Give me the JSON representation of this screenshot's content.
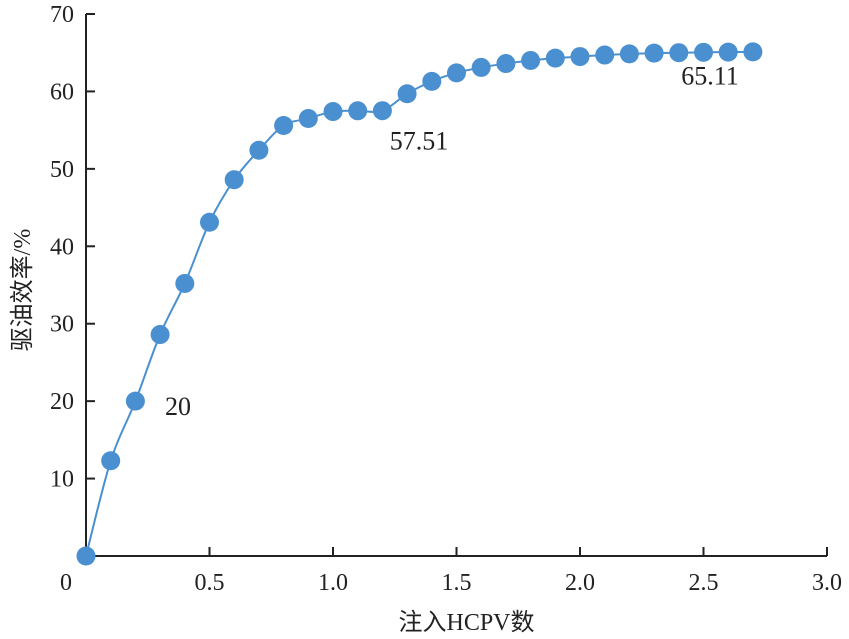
{
  "chart_data": {
    "type": "line",
    "xlabel": "注入HCPV数",
    "ylabel": "驱油效率/%",
    "xlim": [
      0,
      3.0
    ],
    "ylim": [
      0,
      70
    ],
    "x_ticks": [
      "0",
      "0.5",
      "1.0",
      "1.5",
      "2.0",
      "2.5",
      "3.0"
    ],
    "x_tick_values": [
      0,
      0.5,
      1.0,
      1.5,
      2.0,
      2.5,
      3.0
    ],
    "y_ticks": [
      "10",
      "20",
      "30",
      "40",
      "50",
      "60",
      "70"
    ],
    "y_tick_values": [
      10,
      20,
      30,
      40,
      50,
      60,
      70
    ],
    "grid": false,
    "legend": "none",
    "color": "#4a90d0",
    "series": [
      {
        "x": [
          0.0,
          0.1,
          0.2,
          0.3,
          0.4,
          0.5,
          0.6,
          0.7,
          0.8,
          0.9,
          1.0,
          1.1,
          1.2,
          1.3,
          1.4,
          1.5,
          1.6,
          1.7,
          1.8,
          1.9,
          2.0,
          2.1,
          2.2,
          2.3,
          2.4,
          2.5,
          2.6,
          2.7
        ],
        "y": [
          0.0,
          12.3,
          20.0,
          28.6,
          35.2,
          43.1,
          48.6,
          52.4,
          55.6,
          56.5,
          57.4,
          57.5,
          57.51,
          59.7,
          61.3,
          62.4,
          63.1,
          63.6,
          64.0,
          64.3,
          64.5,
          64.7,
          64.85,
          64.95,
          65.0,
          65.05,
          65.08,
          65.11
        ]
      }
    ],
    "annotations": [
      {
        "text": "20",
        "x": 0.32,
        "y": 18.2
      },
      {
        "text": "57.51",
        "x": 1.23,
        "y": 52.5
      },
      {
        "text": "65.11",
        "x": 2.41,
        "y": 60.9
      }
    ]
  }
}
